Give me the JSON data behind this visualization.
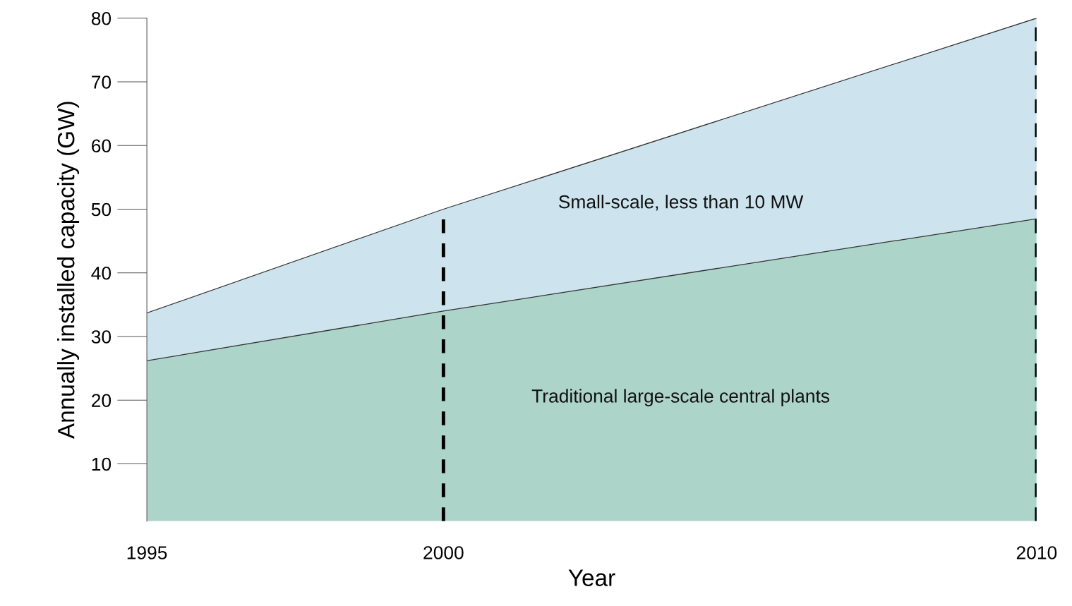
{
  "chart_data": {
    "type": "area",
    "stacked": true,
    "xlabel": "Year",
    "ylabel": "Annually installed capacity (GW)",
    "x": [
      1995,
      2000,
      2010
    ],
    "xlim": [
      1995,
      2010
    ],
    "xticks": [
      1995,
      2000,
      2010
    ],
    "ylim": [
      1,
      80
    ],
    "yticks": [
      10,
      20,
      30,
      40,
      50,
      60,
      70,
      80
    ],
    "grid": false,
    "legend": false,
    "series": [
      {
        "name": "Traditional large-scale central plants",
        "color": "#acd4c9",
        "values": [
          26.2,
          34,
          48.5
        ]
      },
      {
        "name": "Small-scale, less than 10 MW",
        "color": "#cde4ee",
        "values": [
          7.5,
          16,
          31.5
        ]
      }
    ],
    "ref_lines": [
      {
        "axis": "x",
        "value": 2000,
        "line_style": "dashed",
        "color": "#000000"
      },
      {
        "axis": "x",
        "value": 2010,
        "line_style": "dashed",
        "color": "#000000"
      }
    ]
  }
}
